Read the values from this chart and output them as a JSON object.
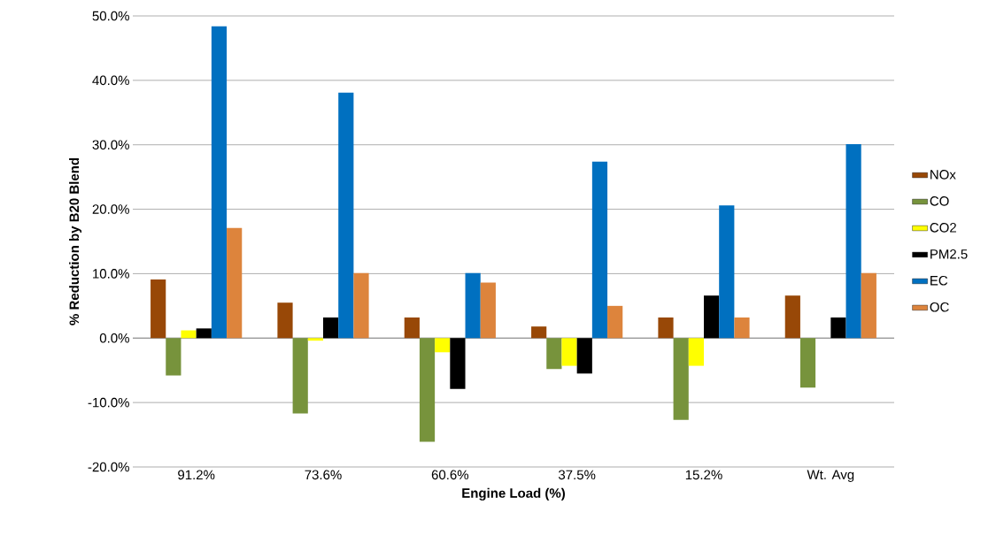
{
  "chart_data": {
    "type": "bar",
    "xlabel": "Engine Load (%)",
    "ylabel": "% Reduction by B20 Blend",
    "categories": [
      "91.2%",
      "73.6%",
      "60.6%",
      "37.5%",
      "15.2%",
      "Wt. Avg"
    ],
    "series": [
      {
        "name": "NOx",
        "color": "#984807",
        "values": [
          9.1,
          5.5,
          3.2,
          1.8,
          3.2,
          6.6
        ]
      },
      {
        "name": "CO",
        "color": "#77933c",
        "values": [
          -5.8,
          -11.7,
          -16.1,
          -4.8,
          -12.7,
          -7.7
        ]
      },
      {
        "name": "CO2",
        "color": "#ffff00",
        "values": [
          1.2,
          -0.4,
          -2.2,
          -4.3,
          -4.3,
          0
        ]
      },
      {
        "name": "PM2.5",
        "color": "#000000",
        "values": [
          1.5,
          3.2,
          -7.9,
          -5.5,
          6.6,
          3.2
        ]
      },
      {
        "name": "EC",
        "color": "#0070c0",
        "values": [
          48.4,
          38.1,
          10.1,
          27.4,
          20.6,
          30.1
        ]
      },
      {
        "name": "OC",
        "color": "#dd843c",
        "values": [
          17.1,
          10.1,
          8.6,
          5.0,
          3.2,
          10.1
        ]
      }
    ],
    "ylim": [
      -20,
      50
    ],
    "yticks": [
      {
        "value": -20,
        "label": "-20.0%"
      },
      {
        "value": -10,
        "label": "-10.0%"
      },
      {
        "value": 0,
        "label": "0.0%"
      },
      {
        "value": 10,
        "label": "10.0%"
      },
      {
        "value": 20,
        "label": "20.0%"
      },
      {
        "value": 30,
        "label": "30.0%"
      },
      {
        "value": 40,
        "label": "40.0%"
      },
      {
        "value": 50,
        "label": "50.0%"
      }
    ],
    "grid": "y",
    "legend": "right"
  }
}
